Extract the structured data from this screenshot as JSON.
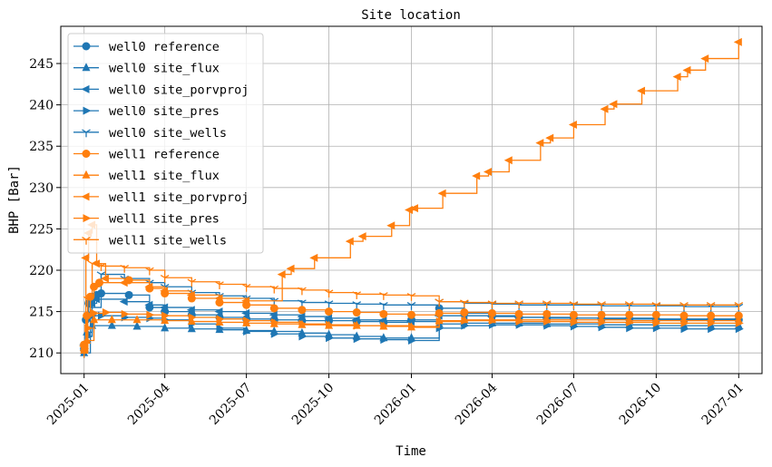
{
  "chart_data": {
    "type": "line",
    "title": "Site location",
    "xlabel": "Time",
    "ylabel": "BHP [Bar]",
    "ylim": [
      207.5,
      249.5
    ],
    "xlim": [
      "2024-12-06",
      "2027-01-27"
    ],
    "yticks": [
      210,
      215,
      220,
      225,
      230,
      235,
      240,
      245
    ],
    "xticks": [
      "2025-01",
      "2025-04",
      "2025-07",
      "2025-10",
      "2026-01",
      "2026-04",
      "2026-07",
      "2026-10",
      "2027-01"
    ],
    "grid": true,
    "legend_position": "upper-left",
    "colors": {
      "well0": "#1f77b4",
      "well1": "#ff7f0e"
    },
    "series": [
      {
        "name": "well0 reference",
        "marker": "circle",
        "color": "#1f77b4",
        "x": [
          "2025-01-01",
          "2025-01-03",
          "2025-01-06",
          "2025-01-10",
          "2025-01-15",
          "2025-01-20",
          "2025-02-20",
          "2025-03-15",
          "2025-04-01",
          "2025-05-01",
          "2025-06-01",
          "2025-07-01",
          "2025-08-01",
          "2025-09-01",
          "2025-10-01",
          "2025-11-01",
          "2025-12-01",
          "2026-01-01",
          "2026-02-01",
          "2026-03-01",
          "2026-04-01",
          "2026-05-01",
          "2026-06-01",
          "2026-07-01",
          "2026-08-01",
          "2026-09-01",
          "2026-10-01",
          "2026-11-01",
          "2026-12-01",
          "2027-01-01"
        ],
        "y": [
          210.5,
          214.0,
          216.0,
          216.8,
          217.0,
          217.2,
          217.0,
          215.5,
          215.0,
          214.6,
          214.3,
          214.1,
          214.0,
          213.9,
          213.9,
          213.8,
          213.7,
          214.0,
          215.4,
          214.8,
          214.5,
          214.3,
          214.2,
          214.2,
          214.1,
          214.1,
          214.0,
          214.0,
          214.0,
          214.0
        ]
      },
      {
        "name": "well0 site_flux",
        "marker": "triangle-up",
        "color": "#1f77b4",
        "x": [
          "2025-01-01",
          "2025-01-04",
          "2025-01-10",
          "2025-02-01",
          "2025-03-01",
          "2025-04-01",
          "2025-05-01",
          "2025-06-01",
          "2025-07-01",
          "2025-08-01",
          "2025-09-01",
          "2025-10-01",
          "2025-11-01",
          "2025-12-01",
          "2026-01-01",
          "2026-02-01",
          "2026-03-01",
          "2026-04-01",
          "2026-05-01",
          "2026-06-01",
          "2026-07-01",
          "2026-08-01",
          "2026-09-01",
          "2026-10-01",
          "2026-11-01",
          "2026-12-01",
          "2027-01-01"
        ],
        "y": [
          210.0,
          212.5,
          213.3,
          213.3,
          213.2,
          213.0,
          212.9,
          212.8,
          212.7,
          212.6,
          212.4,
          212.2,
          212.0,
          211.8,
          211.8,
          213.5,
          213.6,
          213.6,
          213.6,
          213.5,
          213.5,
          213.4,
          213.4,
          213.3,
          213.3,
          213.3,
          213.3
        ]
      },
      {
        "name": "well0 site_porvproj",
        "marker": "triangle-left",
        "color": "#1f77b4",
        "x": [
          "2025-01-01",
          "2025-01-05",
          "2025-01-10",
          "2025-01-15",
          "2025-02-15",
          "2025-03-15",
          "2025-04-01",
          "2025-05-01",
          "2025-06-01",
          "2025-07-01",
          "2025-08-01",
          "2025-09-01",
          "2025-10-01",
          "2025-11-01",
          "2025-12-01",
          "2026-01-01",
          "2026-02-01",
          "2026-03-01",
          "2026-04-01",
          "2026-05-01",
          "2026-06-01",
          "2026-07-01",
          "2026-08-01",
          "2026-09-01",
          "2026-10-01",
          "2026-11-01",
          "2026-12-01",
          "2027-01-01"
        ],
        "y": [
          211.0,
          214.5,
          216.0,
          216.5,
          216.2,
          215.8,
          215.5,
          215.2,
          215.0,
          214.8,
          214.6,
          214.4,
          214.2,
          214.0,
          213.9,
          213.8,
          214.5,
          214.5,
          214.4,
          214.3,
          214.3,
          214.2,
          214.2,
          214.2,
          214.1,
          214.1,
          214.1,
          214.1
        ]
      },
      {
        "name": "well0 site_pres",
        "marker": "triangle-right",
        "color": "#1f77b4",
        "x": [
          "2025-01-01",
          "2025-01-05",
          "2025-01-10",
          "2025-01-20",
          "2025-02-15",
          "2025-03-15",
          "2025-04-01",
          "2025-05-01",
          "2025-06-01",
          "2025-07-01",
          "2025-08-01",
          "2025-09-01",
          "2025-10-01",
          "2025-11-01",
          "2025-12-01",
          "2026-01-01",
          "2026-02-01",
          "2026-03-01",
          "2026-04-01",
          "2026-05-01",
          "2026-06-01",
          "2026-07-01",
          "2026-08-01",
          "2026-09-01",
          "2026-10-01",
          "2026-11-01",
          "2026-12-01",
          "2027-01-01"
        ],
        "y": [
          210.2,
          212.0,
          214.5,
          214.5,
          214.3,
          214.2,
          214.0,
          213.5,
          213.0,
          212.6,
          212.3,
          212.0,
          211.8,
          211.7,
          211.6,
          211.5,
          213.0,
          213.3,
          213.4,
          213.4,
          213.3,
          213.2,
          213.1,
          213.0,
          213.0,
          212.9,
          212.9,
          212.9
        ]
      },
      {
        "name": "well0 site_wells",
        "marker": "tri-down",
        "color": "#1f77b4",
        "x": [
          "2025-01-01",
          "2025-01-08",
          "2025-01-20",
          "2025-02-15",
          "2025-03-15",
          "2025-04-01",
          "2025-05-01",
          "2025-06-01",
          "2025-07-01",
          "2025-08-01",
          "2025-09-01",
          "2025-10-01",
          "2025-11-01",
          "2025-12-01",
          "2026-01-01",
          "2026-02-01",
          "2026-03-01",
          "2026-04-01",
          "2026-05-01",
          "2026-06-01",
          "2026-07-01",
          "2026-08-01",
          "2026-09-01",
          "2026-10-01",
          "2026-11-01",
          "2026-12-01",
          "2027-01-01"
        ],
        "y": [
          210.0,
          215.5,
          219.5,
          219.0,
          218.5,
          218.0,
          217.3,
          216.9,
          216.6,
          216.3,
          216.1,
          216.0,
          215.9,
          215.8,
          215.8,
          216.2,
          216.0,
          215.9,
          215.8,
          215.8,
          215.8,
          215.7,
          215.7,
          215.7,
          215.6,
          215.6,
          215.6
        ]
      },
      {
        "name": "well1 reference",
        "marker": "circle",
        "color": "#ff7f0e",
        "x": [
          "2025-01-01",
          "2025-01-04",
          "2025-01-08",
          "2025-01-12",
          "2025-01-18",
          "2025-02-20",
          "2025-03-15",
          "2025-04-01",
          "2025-05-01",
          "2025-06-01",
          "2025-07-01",
          "2025-08-01",
          "2025-09-01",
          "2025-10-01",
          "2025-11-01",
          "2025-12-01",
          "2026-01-01",
          "2026-02-01",
          "2026-03-01",
          "2026-04-01",
          "2026-05-01",
          "2026-06-01",
          "2026-07-01",
          "2026-08-01",
          "2026-09-01",
          "2026-10-01",
          "2026-11-01",
          "2026-12-01",
          "2027-01-01"
        ],
        "y": [
          211.0,
          214.5,
          216.8,
          218.0,
          218.5,
          218.8,
          217.8,
          217.2,
          216.6,
          216.1,
          215.8,
          215.4,
          215.2,
          215.0,
          214.9,
          214.7,
          214.6,
          214.8,
          214.9,
          214.8,
          214.7,
          214.7,
          214.6,
          214.6,
          214.6,
          214.6,
          214.5,
          214.5,
          214.5
        ]
      },
      {
        "name": "well1 site_flux",
        "marker": "triangle-up",
        "color": "#ff7f0e",
        "x": [
          "2025-01-01",
          "2025-01-04",
          "2025-01-12",
          "2025-02-01",
          "2025-03-01",
          "2025-04-01",
          "2025-05-01",
          "2025-06-01",
          "2025-07-01",
          "2025-08-01",
          "2025-09-01",
          "2025-10-01",
          "2025-11-01",
          "2025-12-01",
          "2026-01-01",
          "2026-02-01",
          "2026-03-01",
          "2026-04-01",
          "2026-05-01",
          "2026-06-01",
          "2026-07-01",
          "2026-08-01",
          "2026-09-01",
          "2026-10-01",
          "2026-11-01",
          "2026-12-01",
          "2027-01-01"
        ],
        "y": [
          210.3,
          211.5,
          214.0,
          214.0,
          214.0,
          213.9,
          213.8,
          213.7,
          213.6,
          213.5,
          213.4,
          213.3,
          213.3,
          213.2,
          213.1,
          213.9,
          214.0,
          214.0,
          214.0,
          214.0,
          214.0,
          214.0,
          213.9,
          213.9,
          213.9,
          213.9,
          213.9
        ]
      },
      {
        "name": "well1 site_porvproj",
        "marker": "triangle-left",
        "color": "#ff7f0e",
        "x": [
          "2025-01-01",
          "2025-01-03",
          "2025-01-06",
          "2025-01-10",
          "2025-01-15",
          "2025-01-25",
          "2025-02-15",
          "2025-03-15",
          "2025-04-01",
          "2025-05-01",
          "2025-06-01",
          "2025-07-01",
          "2025-08-10",
          "2025-08-20",
          "2025-09-15",
          "2025-10-25",
          "2025-11-08",
          "2025-12-10",
          "2025-12-30",
          "2026-01-05",
          "2026-02-05",
          "2026-03-15",
          "2026-03-28",
          "2026-04-20",
          "2026-05-25",
          "2026-06-05",
          "2026-07-01",
          "2026-08-05",
          "2026-08-15",
          "2026-09-15",
          "2026-10-25",
          "2026-11-05",
          "2026-11-25",
          "2027-01-01"
        ],
        "y": [
          210.8,
          221.5,
          224.5,
          225.5,
          220.8,
          219.0,
          218.5,
          218.0,
          217.5,
          217.0,
          216.6,
          216.3,
          219.5,
          220.2,
          221.5,
          223.5,
          224.1,
          225.4,
          227.3,
          227.5,
          229.3,
          231.4,
          231.9,
          233.3,
          235.4,
          236.0,
          237.6,
          239.5,
          240.1,
          241.7,
          243.4,
          244.2,
          245.6,
          247.6
        ]
      },
      {
        "name": "well1 site_pres",
        "marker": "triangle-right",
        "color": "#ff7f0e",
        "x": [
          "2025-01-01",
          "2025-01-05",
          "2025-01-12",
          "2025-01-25",
          "2025-02-15",
          "2025-03-15",
          "2025-04-01",
          "2025-05-01",
          "2025-06-01",
          "2025-07-01",
          "2025-08-01",
          "2025-09-01",
          "2025-10-01",
          "2025-11-01",
          "2025-12-01",
          "2026-01-01",
          "2026-02-01",
          "2026-03-01",
          "2026-04-01",
          "2026-05-01",
          "2026-06-01",
          "2026-07-01",
          "2026-08-01",
          "2026-09-01",
          "2026-10-01",
          "2026-11-01",
          "2026-12-01",
          "2027-01-01"
        ],
        "y": [
          210.5,
          213.0,
          214.8,
          214.9,
          214.7,
          214.6,
          214.5,
          214.3,
          214.1,
          213.9,
          213.7,
          213.5,
          213.4,
          213.3,
          213.3,
          213.2,
          213.8,
          213.9,
          213.9,
          213.8,
          213.8,
          213.7,
          213.7,
          213.7,
          213.6,
          213.6,
          213.6,
          213.6
        ]
      },
      {
        "name": "well1 site_wells",
        "marker": "tri-down",
        "color": "#ff7f0e",
        "x": [
          "2025-01-01",
          "2025-01-05",
          "2025-01-10",
          "2025-01-20",
          "2025-02-15",
          "2025-03-15",
          "2025-04-01",
          "2025-05-01",
          "2025-06-01",
          "2025-07-01",
          "2025-08-01",
          "2025-09-01",
          "2025-10-01",
          "2025-11-01",
          "2025-12-01",
          "2026-01-01",
          "2026-02-01",
          "2026-03-01",
          "2026-04-01",
          "2026-05-01",
          "2026-06-01",
          "2026-07-01",
          "2026-08-01",
          "2026-09-01",
          "2026-10-01",
          "2026-11-01",
          "2026-12-01",
          "2027-01-01"
        ],
        "y": [
          210.0,
          216.5,
          220.8,
          220.5,
          220.3,
          220.0,
          219.1,
          218.6,
          218.3,
          218.0,
          217.8,
          217.6,
          217.3,
          217.1,
          217.0,
          216.9,
          216.2,
          216.1,
          216.0,
          216.0,
          216.0,
          215.9,
          215.9,
          215.9,
          215.8,
          215.8,
          215.8,
          215.8
        ]
      }
    ]
  }
}
